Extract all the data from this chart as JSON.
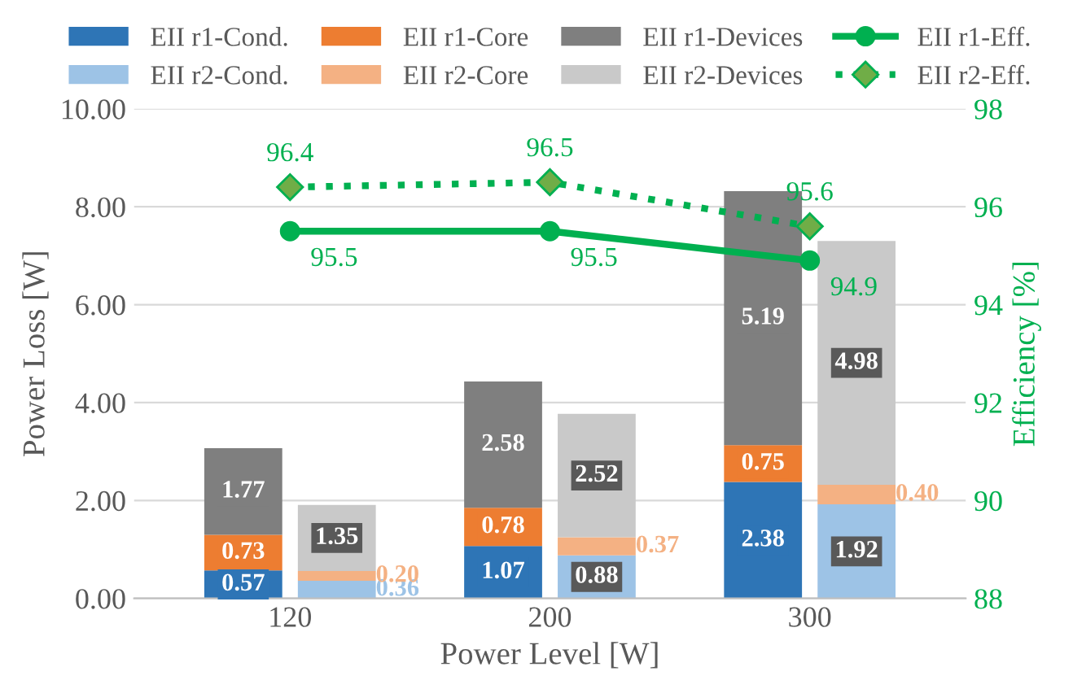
{
  "chart_data": {
    "type": "bar",
    "xlabel": "Power Level [W]",
    "ylabel": "Power Loss [W]",
    "y2label": "Efficiency [%]",
    "categories": [
      "120",
      "200",
      "300"
    ],
    "ylim": [
      0,
      10
    ],
    "yticks": [
      {
        "value": 0,
        "label": "0.00"
      },
      {
        "value": 2,
        "label": "2.00"
      },
      {
        "value": 4,
        "label": "4.00"
      },
      {
        "value": 6,
        "label": "6.00"
      },
      {
        "value": 8,
        "label": "8.00"
      },
      {
        "value": 10,
        "label": "10.00"
      }
    ],
    "y2lim": [
      88,
      98
    ],
    "y2ticks": [
      88,
      90,
      92,
      94,
      96,
      98
    ],
    "grid": "y",
    "legend": "top",
    "series": [
      {
        "name": "EII r1-Cond.",
        "color": "#2e75b6",
        "base": [
          0,
          0,
          0
        ],
        "values": [
          0.57,
          1.07,
          2.38
        ],
        "value_labels": [
          "0.57",
          "1.07",
          "2.38"
        ]
      },
      {
        "name": "EII r1-Core",
        "color": "#ed7d31",
        "base": [
          0.57,
          1.07,
          2.38
        ],
        "values": [
          0.73,
          0.78,
          0.75
        ],
        "value_labels": [
          "0.73",
          "0.78",
          "0.75"
        ]
      },
      {
        "name": "EII r1-Devices",
        "color": "#7f7f7f",
        "base": [
          1.3,
          1.85,
          3.13
        ],
        "values": [
          1.77,
          2.58,
          5.19
        ],
        "value_labels": [
          "1.77",
          "2.58",
          "5.19"
        ]
      },
      {
        "name": "EII r2-Cond.",
        "color": "#9dc3e6",
        "base": [
          0,
          0,
          0
        ],
        "values": [
          0.36,
          0.88,
          1.92
        ],
        "value_labels": [
          "0.36",
          "0.88",
          "1.92"
        ]
      },
      {
        "name": "EII r2-Core",
        "color": "#f4b183",
        "base": [
          0.36,
          0.88,
          1.92
        ],
        "values": [
          0.2,
          0.37,
          0.4
        ],
        "value_labels": [
          "0.20",
          "0.37",
          "0.40"
        ]
      },
      {
        "name": "EII r2-Devices",
        "color": "#c9c9c9",
        "base": [
          0.56,
          1.25,
          2.32
        ],
        "values": [
          1.35,
          2.52,
          4.98
        ],
        "value_labels": [
          "1.35",
          "2.52",
          "4.98"
        ]
      },
      {
        "name": "EII r1-Eff.",
        "type": "line",
        "axis": "y2",
        "color": "#00b050",
        "marker": "circle",
        "line_style": "solid",
        "values": [
          95.5,
          95.5,
          94.9
        ],
        "value_labels": [
          "95.5",
          "95.5",
          "94.9"
        ]
      },
      {
        "name": "EII r2-Eff.",
        "type": "line",
        "axis": "y2",
        "color": "#00b050",
        "marker": "diamond",
        "line_style": "dotted",
        "values": [
          96.4,
          96.5,
          95.6
        ],
        "value_labels": [
          "96.4",
          "96.5",
          "95.6"
        ]
      }
    ]
  }
}
